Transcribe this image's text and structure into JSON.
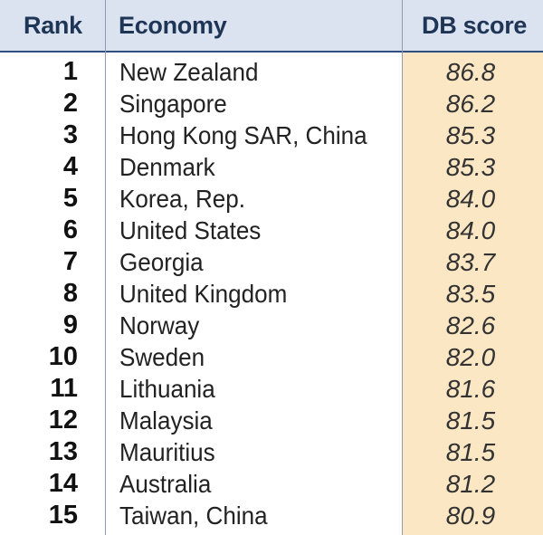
{
  "headers": {
    "rank": "Rank",
    "economy": "Economy",
    "score": "DB score"
  },
  "chart_data": {
    "type": "table",
    "columns": [
      "Rank",
      "Economy",
      "DB score"
    ],
    "rows": [
      {
        "rank": "1",
        "economy": "New Zealand",
        "score": "86.8"
      },
      {
        "rank": "2",
        "economy": "Singapore",
        "score": "86.2"
      },
      {
        "rank": "3",
        "economy": "Hong Kong SAR, China",
        "score": "85.3"
      },
      {
        "rank": "4",
        "economy": "Denmark",
        "score": "85.3"
      },
      {
        "rank": "5",
        "economy": "Korea, Rep.",
        "score": "84.0"
      },
      {
        "rank": "6",
        "economy": "United States",
        "score": "84.0"
      },
      {
        "rank": "7",
        "economy": "Georgia",
        "score": "83.7"
      },
      {
        "rank": "8",
        "economy": "United Kingdom",
        "score": "83.5"
      },
      {
        "rank": "9",
        "economy": "Norway",
        "score": "82.6"
      },
      {
        "rank": "10",
        "economy": "Sweden",
        "score": "82.0"
      },
      {
        "rank": "11",
        "economy": "Lithuania",
        "score": "81.6"
      },
      {
        "rank": "12",
        "economy": "Malaysia",
        "score": "81.5"
      },
      {
        "rank": "13",
        "economy": "Mauritius",
        "score": "81.5"
      },
      {
        "rank": "14",
        "economy": "Australia",
        "score": "81.2"
      },
      {
        "rank": "15",
        "economy": "Taiwan, China",
        "score": "80.9"
      }
    ]
  },
  "colors": {
    "header_bg": "#dbe3f1",
    "header_text": "#1f3555",
    "score_column_bg": "#fbe7c3"
  }
}
